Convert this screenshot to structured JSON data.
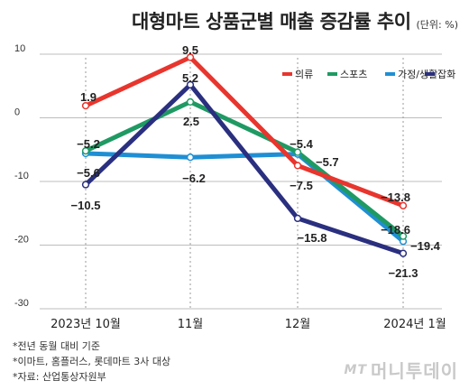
{
  "chart_data": {
    "type": "line",
    "title": "대형마트 상품군별 매출 증감률 추이",
    "unit": "(단위: %)",
    "categories": [
      "2023년 10월",
      "11월",
      "12월",
      "2024년 1월"
    ],
    "ylim": [
      -30,
      10
    ],
    "yticks": [
      "10",
      "0",
      "-10",
      "-20",
      "-30"
    ],
    "grid": "horizontal",
    "legend_position": "top-right",
    "series": [
      {
        "name": "의류",
        "color": "#e8352d",
        "values": [
          1.9,
          9.5,
          -7.5,
          -13.8
        ],
        "labels": [
          "1.9",
          "9.5",
          "−7.5",
          "−13.8"
        ]
      },
      {
        "name": "스포츠",
        "color": "#1f9a63",
        "values": [
          -5.2,
          2.5,
          -5.4,
          -18.6
        ],
        "labels": [
          "−5.2",
          "2.5",
          "−5.4",
          "−18.6"
        ]
      },
      {
        "name": "가정/생활",
        "color": "#1f8fd4",
        "values": [
          -5.6,
          -6.2,
          -5.7,
          -19.4
        ],
        "labels": [
          "−5.6",
          "−6.2",
          "−5.7",
          "−19.4"
        ]
      },
      {
        "name": "잡화",
        "color": "#2a2f7f",
        "values": [
          -10.5,
          5.2,
          -15.8,
          -21.3
        ],
        "labels": [
          "−10.5",
          "5.2",
          "−15.8",
          "−21.3"
        ]
      }
    ]
  },
  "footnotes": [
    "*전년 동월 대비 기준",
    "*이마트, 홈플러스, 롯데마트 3사 대상",
    "*자료: 산업통상자원부"
  ],
  "brand": {
    "prefix": "MT",
    "name": "머니투데이"
  }
}
